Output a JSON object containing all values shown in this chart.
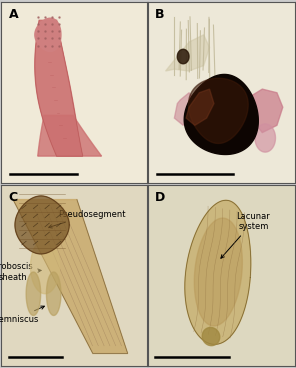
{
  "figsize": [
    2.96,
    3.68
  ],
  "dpi": 100,
  "border_color": "#555555",
  "label_fontsize": 9,
  "panel_labels": [
    "A",
    "B",
    "C",
    "D"
  ],
  "panel_A": {
    "bg": "#f0ead8",
    "body_main": "#cc7070",
    "body_dark": "#b85858",
    "head_color": "#d08080",
    "head_texture": "#c06868"
  },
  "panel_B": {
    "bg": "#ede8d8",
    "dark_body": "#1a0800",
    "dark_body2": "#3a1a08",
    "brown_body": "#6a3018",
    "pink1": "#c87888",
    "pink2": "#d090a0",
    "upper_structure": "#c8bca0"
  },
  "panel_C": {
    "bg": "#e0d8c0",
    "body_outer": "#c8a868",
    "body_inner": "#b09050",
    "head_dark": "#7a5828",
    "head_mid": "#9a7840",
    "proboscis_inner": "#c0a060"
  },
  "panel_D": {
    "bg": "#ddd8c0",
    "body_outer": "#c8b070",
    "body_inner": "#b89858",
    "body_detail": "#a88848"
  }
}
